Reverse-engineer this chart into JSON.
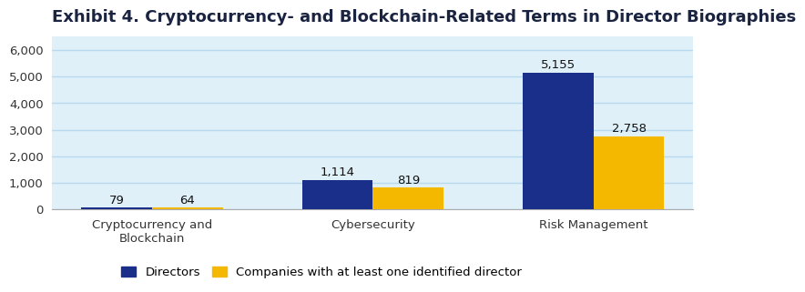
{
  "title": "Exhibit 4. Cryptocurrency- and Blockchain-Related Terms in Director Biographies",
  "categories": [
    "Cryptocurrency and\nBlockchain",
    "Cybersecurity",
    "Risk Management"
  ],
  "directors": [
    79,
    1114,
    5155
  ],
  "companies": [
    64,
    819,
    2758
  ],
  "bar_color_directors": "#1a2f8a",
  "bar_color_companies": "#f5b800",
  "legend_labels": [
    "Directors",
    "Companies with at least one identified director"
  ],
  "ylim": [
    0,
    6500
  ],
  "yticks": [
    0,
    1000,
    2000,
    3000,
    4000,
    5000,
    6000
  ],
  "ytick_labels": [
    "0",
    "1,000",
    "2,000",
    "3,000",
    "4,000",
    "5,000",
    "6,000"
  ],
  "fig_background_color": "#ffffff",
  "plot_background_color": "#dff0f8",
  "grid_color": "#b8daf0",
  "bar_width": 0.32,
  "title_fontsize": 13,
  "label_fontsize": 9.5,
  "tick_fontsize": 9.5,
  "annotation_fontsize": 9.5,
  "title_color": "#1a2340"
}
